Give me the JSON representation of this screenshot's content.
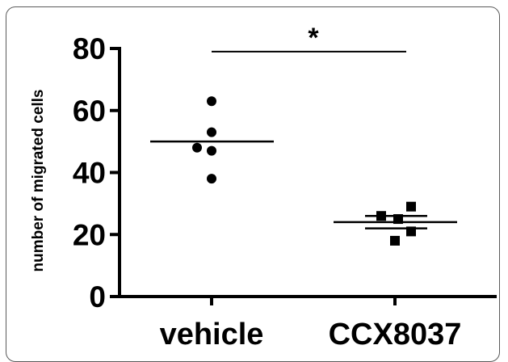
{
  "chart_data": {
    "type": "scatter",
    "ylabel": "number of migrated cells",
    "ylim": [
      0,
      80
    ],
    "yticks": [
      0,
      20,
      40,
      60,
      80
    ],
    "categories": [
      "vehicle",
      "CCX8037"
    ],
    "grid": false,
    "series": [
      {
        "category": "vehicle",
        "marker": "circle",
        "values": [
          63,
          53,
          48,
          47,
          38
        ],
        "mean": 50
      },
      {
        "category": "CCX8037",
        "marker": "square",
        "values": [
          29,
          26,
          25,
          21,
          18
        ],
        "mean": 24,
        "error": 2
      }
    ],
    "significance": {
      "label": "*",
      "y": 79,
      "between": [
        "vehicle",
        "CCX8037"
      ]
    },
    "colors": {
      "marks": "#000000",
      "frame": "#5a5a5a"
    }
  }
}
